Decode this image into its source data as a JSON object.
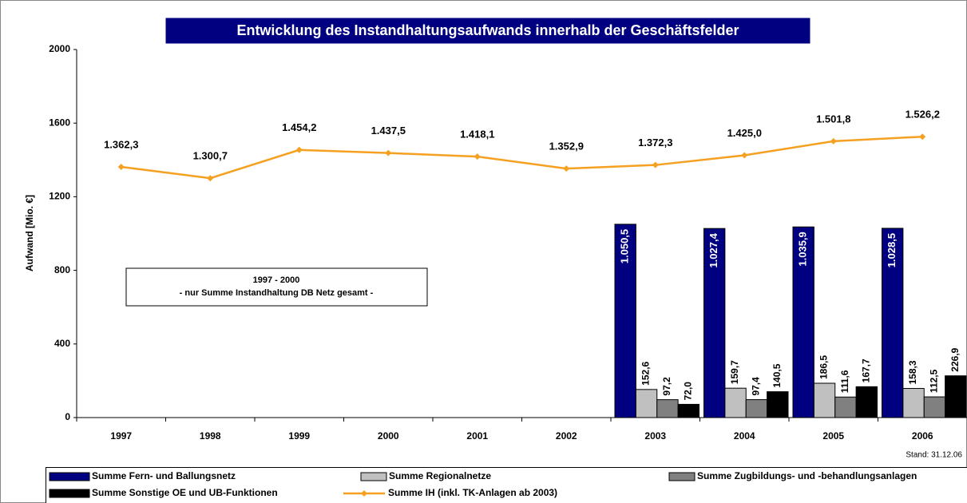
{
  "chart_data": {
    "type": "bar",
    "title": "Entwicklung des Instandhaltungsaufwands innerhalb der Geschäftsfelder",
    "y_label": "Aufwand [Mio. €]",
    "annotation": [
      "1997 - 2000",
      "- nur Summe Instandhaltung DB Netz gesamt -"
    ],
    "note": "Stand: 31.12.06",
    "categories": [
      "1997",
      "1998",
      "1999",
      "2000",
      "2001",
      "2002",
      "2003",
      "2004",
      "2005",
      "2006"
    ],
    "ylim": [
      0,
      2000
    ],
    "yticks": [
      0,
      400,
      800,
      1200,
      1600,
      2000
    ],
    "grid": false,
    "series": [
      {
        "name": "Summe Fern- und Ballungsnetz",
        "color": "#000080",
        "values": [
          null,
          null,
          null,
          null,
          null,
          null,
          1050.5,
          1027.4,
          1035.9,
          1028.5
        ],
        "value_labels": [
          null,
          null,
          null,
          null,
          null,
          null,
          "1.050,5",
          "1.027,4",
          "1.035,9",
          "1.028,5"
        ]
      },
      {
        "name": "Summe Regionalnetze",
        "color": "#c0c0c0",
        "values": [
          null,
          null,
          null,
          null,
          null,
          null,
          152.6,
          159.7,
          186.5,
          158.3
        ],
        "value_labels": [
          null,
          null,
          null,
          null,
          null,
          null,
          "152,6",
          "159,7",
          "186,5",
          "158,3"
        ]
      },
      {
        "name": "Summe Zugbildungs- und -behandlungsanlagen",
        "color": "#808080",
        "values": [
          null,
          null,
          null,
          null,
          null,
          null,
          97.2,
          97.4,
          111.6,
          112.5
        ],
        "value_labels": [
          null,
          null,
          null,
          null,
          null,
          null,
          "97,2",
          "97,4",
          "111,6",
          "112,5"
        ]
      },
      {
        "name": "Summe Sonstige OE und UB-Funktionen",
        "color": "#000000",
        "values": [
          null,
          null,
          null,
          null,
          null,
          null,
          72.0,
          140.5,
          167.7,
          226.9
        ],
        "value_labels": [
          null,
          null,
          null,
          null,
          null,
          null,
          "72,0",
          "140,5",
          "167,7",
          "226,9"
        ]
      },
      {
        "name": "Summe IH (inkl. TK-Anlagen ab 2003)",
        "type": "line",
        "color": "#f5a020",
        "values": [
          1362.3,
          1300.7,
          1454.2,
          1437.5,
          1418.1,
          1352.9,
          1372.3,
          1425.0,
          1501.8,
          1526.2
        ],
        "value_labels": [
          "1.362,3",
          "1.300,7",
          "1.454,2",
          "1.437,5",
          "1.418,1",
          "1.352,9",
          "1.372,3",
          "1.425,0",
          "1.501,8",
          "1.526,2"
        ]
      }
    ]
  }
}
